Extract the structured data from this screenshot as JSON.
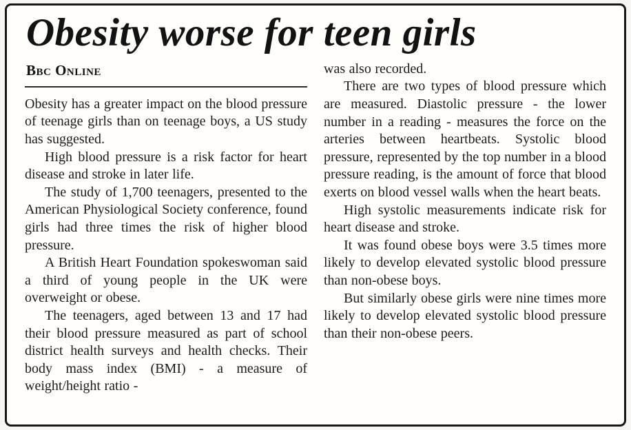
{
  "article": {
    "headline": "Obesity worse for teen girls",
    "byline": "Bbc Online",
    "left_column": [
      "Obesity has a greater impact on the blood pressure of teenage girls than on teenage boys, a US study has suggested.",
      "High blood pressure is a risk factor for heart disease and stroke in later life.",
      "The study of 1,700 teenagers, presented to the American Physiological Society conference, found girls had three times the risk of higher blood pressure.",
      "A British Heart Foundation spokeswoman said a third of young people in the UK were overweight or obese.",
      "The teenagers, aged between 13 and 17 had their blood pressure measured as part of school district health surveys and health checks. Their body mass index (BMI) - a measure of weight/height ratio -"
    ],
    "right_column": [
      "was also recorded.",
      "There are two types of blood pressure which are measured. Diastolic pressure - the lower number in a reading - measures the force on the arteries between heartbeats. Systolic blood pressure, represented by the top number in a blood pressure reading, is the amount of force that blood exerts on blood vessel walls when the heart beats.",
      "High systolic measurements indicate risk for heart disease and stroke.",
      "It was found obese boys were 3.5 times more likely to develop elevated systolic blood pressure than non-obese boys.",
      "But similarly obese girls were nine times more likely to develop elevated systolic blood pressure than their non-obese peers."
    ]
  }
}
